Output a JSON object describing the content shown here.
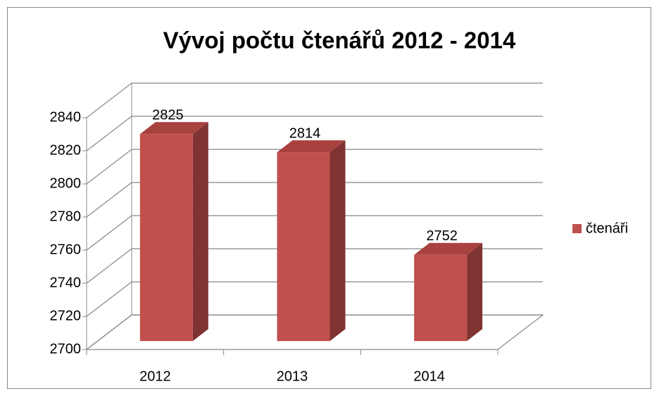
{
  "chart_data": {
    "type": "bar3d",
    "title": "Vývoj počtu čtenářů 2012 - 2014",
    "categories": [
      "2012",
      "2013",
      "2014"
    ],
    "series": [
      {
        "name": "čtenáři",
        "color": "#c0504d",
        "values": [
          2825,
          2814,
          2752
        ]
      }
    ],
    "ylim": [
      2700,
      2840
    ],
    "yticks": [
      2700,
      2720,
      2740,
      2760,
      2780,
      2800,
      2820,
      2840
    ],
    "grid": true,
    "legend": "right"
  }
}
